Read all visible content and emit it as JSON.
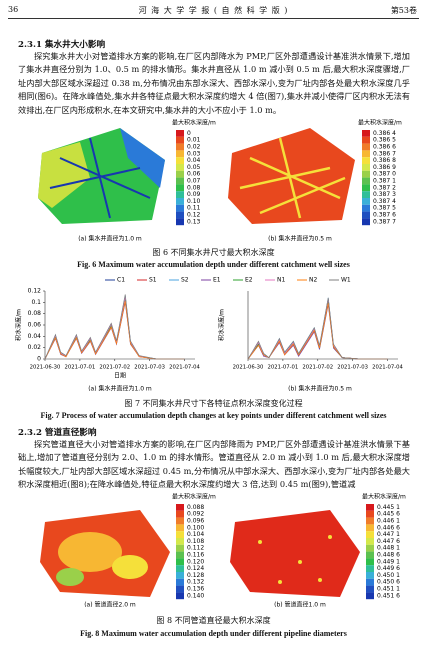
{
  "header": {
    "page": "36",
    "journal": "河 海 大 学 学 报 ( 自 然 科 学 版 )",
    "volume": "第53卷"
  },
  "sections": [
    {
      "heading": "2.3.1  集水井大小影响",
      "paragraph": "探究集水井大小对管道排水方案的影响,在厂区内部降水为 PMP,厂区外部遭遇设计基准洪水情景下,增加了集水井直径分别为 1.0、0.5 m 的排水情形。集水井直径从 1.0 m 减小到 0.5 m 后,最大积水深度骤增,厂址内部大部区域水深超过 0.38 m,分布情况由东部水深大、西部水深小,变为厂址内部各处最大积水深度几乎相同(图6)。在降水峰值处,集水井各特征点最大积水深度约增大 4 倍(图7),集水井减小使得厂区内积水无法有效排出,在厂区内形成积水,在本文研究中,集水井的大小不应小于 1.0 m。"
    },
    {
      "heading": "2.3.2  管道直径影响",
      "paragraph": "探究管道直径大小对管道排水方案的影响,在厂区内部降雨为 PMP,厂区外部遭遇设计基准洪水情景下基础上,增加了管道直径分别为 2.0、1.0 m 的排水情形。管道直径从 2.0 m 减小到 1.0 m 后,最大积水深度增长幅度较大,厂址内部大部区域水深超过 0.45 m,分布情况从中部水深大、西部水深小,变为厂址内部各处最大积水深度相近(图8);在降水峰值处,特征点最大积水深度约增大 3 倍,达到 0.45 m(图9),管道减"
    }
  ],
  "fig6": {
    "panels": [
      {
        "legend_title": "最大积水深度/m",
        "legend": [
          "0",
          "0.01",
          "0.02",
          "0.03",
          "0.04",
          "0.05",
          "0.06",
          "0.07",
          "0.08",
          "0.09",
          "0.10",
          "0.11",
          "0.12",
          "0.13"
        ],
        "subcaption": "(a) 集水井直径为1.0 m"
      },
      {
        "legend_title": "最大积水深度/m",
        "legend": [
          "0.386 4",
          "0.386 5",
          "0.386 6",
          "0.386 7",
          "0.386 8",
          "0.386 9",
          "0.387 0",
          "0.387 1",
          "0.387 2",
          "0.387 3",
          "0.387 4",
          "0.387 5",
          "0.387 6",
          "0.387 7"
        ],
        "subcaption": "(b) 集水井直径为0.5 m"
      }
    ],
    "caption_cn": "图 6   不同集水井尺寸最大积水深度",
    "caption_en": "Fig. 6   Maximum water accumulation depth under different catchment well sizes"
  },
  "chart_data": [
    {
      "type": "line",
      "y_label": "积水深度/m",
      "x_label": "日期",
      "x": [
        0,
        0.3,
        0.45,
        0.6,
        0.9,
        1.05,
        1.3,
        1.45,
        1.9,
        2.05,
        2.3,
        2.45,
        2.7,
        3.2,
        4
      ],
      "xlim": [
        0,
        4.3
      ],
      "xticks": [
        {
          "value": 0,
          "label": "2021-06-30"
        },
        {
          "value": 1,
          "label": "2021-07-01"
        },
        {
          "value": 2,
          "label": "2021-07-02"
        },
        {
          "value": 3,
          "label": "2021-07-03"
        },
        {
          "value": 4,
          "label": "2021-07-04"
        }
      ],
      "ylim": [
        0,
        0.12
      ],
      "yticks": [
        0,
        0.02,
        0.04,
        0.06,
        0.08,
        0.1,
        0.12
      ],
      "series": [
        {
          "name": "C1",
          "color": "#1f3f99",
          "values": [
            0,
            0.04,
            0.01,
            0.005,
            0.04,
            0.012,
            0.035,
            0.01,
            0.06,
            0.03,
            0.11,
            0.03,
            0.005,
            0,
            0
          ]
        },
        {
          "name": "S1",
          "color": "#d62728",
          "values": [
            0,
            0.038,
            0.009,
            0.004,
            0.038,
            0.011,
            0.033,
            0.009,
            0.058,
            0.028,
            0.105,
            0.028,
            0.004,
            0,
            0
          ]
        },
        {
          "name": "S2",
          "color": "#4aa3df",
          "values": [
            0,
            0.042,
            0.011,
            0.005,
            0.042,
            0.013,
            0.037,
            0.011,
            0.062,
            0.031,
            0.112,
            0.031,
            0.005,
            0,
            0
          ]
        },
        {
          "name": "E1",
          "color": "#7b3fa0",
          "values": [
            0,
            0.036,
            0.008,
            0.004,
            0.036,
            0.01,
            0.031,
            0.008,
            0.055,
            0.026,
            0.1,
            0.026,
            0.004,
            0,
            0
          ]
        },
        {
          "name": "E2",
          "color": "#2ca02c",
          "values": [
            0,
            0.039,
            0.01,
            0.005,
            0.039,
            0.012,
            0.034,
            0.01,
            0.059,
            0.029,
            0.108,
            0.029,
            0.005,
            0,
            0
          ]
        },
        {
          "name": "N1",
          "color": "#e377c2",
          "values": [
            0,
            0.041,
            0.01,
            0.005,
            0.041,
            0.012,
            0.036,
            0.01,
            0.061,
            0.03,
            0.109,
            0.03,
            0.005,
            0,
            0
          ]
        },
        {
          "name": "N2",
          "color": "#ff7f0e",
          "values": [
            0,
            0.037,
            0.009,
            0.004,
            0.037,
            0.011,
            0.032,
            0.009,
            0.056,
            0.027,
            0.102,
            0.027,
            0.004,
            0,
            0
          ]
        },
        {
          "name": "W1",
          "color": "#7f7f7f",
          "values": [
            0,
            0.043,
            0.012,
            0.006,
            0.043,
            0.014,
            0.038,
            0.012,
            0.063,
            0.032,
            0.114,
            0.032,
            0.006,
            0,
            0
          ]
        }
      ]
    },
    {
      "type": "line",
      "y_label": "积水深度/m",
      "x": [
        0,
        0.3,
        0.45,
        0.6,
        0.9,
        1.05,
        1.3,
        1.45,
        1.9,
        2.05,
        2.3,
        2.45,
        2.7,
        3.2,
        4
      ],
      "xlim": [
        0,
        4.3
      ],
      "xticks": [
        {
          "value": 0,
          "label": "2021-06-30"
        },
        {
          "value": 1,
          "label": "2021-07-01"
        },
        {
          "value": 2,
          "label": "2021-07-02"
        },
        {
          "value": 3,
          "label": "2021-07-03"
        },
        {
          "value": 4,
          "label": "2021-07-04"
        }
      ],
      "ylim": [
        0,
        0.5
      ],
      "series": [
        {
          "color": "#1f3f99",
          "values": [
            0,
            0.12,
            0.03,
            0.01,
            0.14,
            0.04,
            0.12,
            0.03,
            0.22,
            0.09,
            0.44,
            0.1,
            0.01,
            0,
            0
          ]
        },
        {
          "color": "#d62728",
          "values": [
            0,
            0.11,
            0.03,
            0.01,
            0.13,
            0.04,
            0.11,
            0.03,
            0.21,
            0.08,
            0.42,
            0.09,
            0.01,
            0,
            0
          ]
        },
        {
          "color": "#4aa3df",
          "values": [
            0,
            0.12,
            0.04,
            0.01,
            0.15,
            0.05,
            0.13,
            0.04,
            0.23,
            0.09,
            0.45,
            0.1,
            0.01,
            0,
            0
          ]
        },
        {
          "color": "#7b3fa0",
          "values": [
            0,
            0.1,
            0.02,
            0.01,
            0.12,
            0.03,
            0.1,
            0.02,
            0.2,
            0.07,
            0.4,
            0.08,
            0.01,
            0,
            0
          ]
        },
        {
          "color": "#2ca02c",
          "values": [
            0,
            0.11,
            0.03,
            0.01,
            0.14,
            0.04,
            0.12,
            0.03,
            0.22,
            0.08,
            0.43,
            0.09,
            0.01,
            0,
            0
          ]
        },
        {
          "color": "#e377c2",
          "values": [
            0,
            0.12,
            0.03,
            0.01,
            0.14,
            0.04,
            0.12,
            0.03,
            0.22,
            0.09,
            0.44,
            0.1,
            0.01,
            0,
            0
          ]
        },
        {
          "color": "#ff7f0e",
          "values": [
            0,
            0.1,
            0.03,
            0.01,
            0.13,
            0.03,
            0.11,
            0.03,
            0.21,
            0.08,
            0.41,
            0.09,
            0.01,
            0,
            0
          ]
        },
        {
          "color": "#7f7f7f",
          "values": [
            0,
            0.13,
            0.04,
            0.01,
            0.15,
            0.05,
            0.13,
            0.04,
            0.23,
            0.1,
            0.45,
            0.11,
            0.01,
            0,
            0
          ]
        }
      ]
    }
  ],
  "fig7": {
    "subcaptions": [
      "(a) 集水井直径为1.0 m",
      "(b) 集水井直径为0.5 m"
    ],
    "caption_cn": "图 7   不同集水井尺寸下各特征点积水深度变化过程",
    "caption_en": "Fig. 7   Process of water accumulation depth changes at key points under different catchment well sizes"
  },
  "fig8": {
    "panels": [
      {
        "legend_title": "最大积水深度/m",
        "legend": [
          "0.088",
          "0.092",
          "0.096",
          "0.100",
          "0.104",
          "0.108",
          "0.112",
          "0.116",
          "0.120",
          "0.124",
          "0.128",
          "0.132",
          "0.136",
          "0.140"
        ],
        "subcaption": "(a) 管道直径2.0 m"
      },
      {
        "legend_title": "最大积水深度/m",
        "legend": [
          "0.445 1",
          "0.445 6",
          "0.446 1",
          "0.446 6",
          "0.447 1",
          "0.447 6",
          "0.448 1",
          "0.448 6",
          "0.449 1",
          "0.449 6",
          "0.450 1",
          "0.450 6",
          "0.451 1",
          "0.451 6"
        ],
        "subcaption": "(b) 管道直径1.0 m"
      }
    ],
    "caption_cn": "图 8   不同管道直径最大积水深度",
    "caption_en": "Fig. 8   Maximum water accumulation depth under different pipeline diameters"
  }
}
